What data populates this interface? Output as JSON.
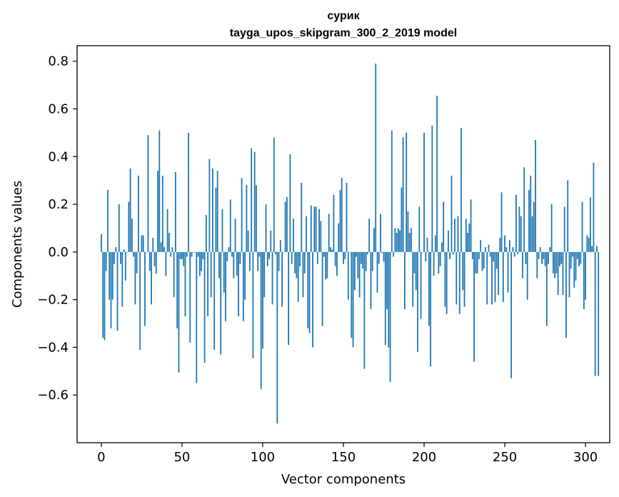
{
  "chart_data": {
    "type": "bar",
    "title": "сурик",
    "subtitle": "tayga_upos_skipgram_300_2_2019 model",
    "xlabel": "Vector components",
    "ylabel": "Components values",
    "xlim": [
      -15,
      315
    ],
    "ylim": [
      -0.8,
      0.865
    ],
    "x_ticks": [
      0,
      50,
      100,
      150,
      200,
      250,
      300
    ],
    "x_tick_labels": [
      "0",
      "50",
      "100",
      "150",
      "200",
      "250",
      "300"
    ],
    "y_ticks": [
      -0.6,
      -0.4,
      -0.2,
      0.0,
      0.2,
      0.4,
      0.6,
      0.8
    ],
    "y_tick_labels": [
      "−0.6",
      "−0.4",
      "−0.2",
      "0.0",
      "0.2",
      "0.4",
      "0.6",
      "0.8"
    ],
    "bar_color": "#1f77b4",
    "values": [
      0.075,
      -0.36,
      -0.37,
      -0.08,
      0.26,
      -0.2,
      -0.32,
      -0.2,
      -0.05,
      0.02,
      -0.33,
      0.2,
      -0.05,
      -0.23,
      0.01,
      -0.12,
      0.0,
      0.21,
      0.35,
      0.14,
      -0.02,
      -0.22,
      -0.09,
      0.32,
      -0.41,
      0.07,
      0.07,
      -0.31,
      0.0,
      0.49,
      -0.08,
      -0.22,
      0.06,
      -0.06,
      -0.09,
      0.34,
      0.51,
      0.04,
      0.32,
      0.02,
      -0.1,
      0.18,
      0.08,
      -0.02,
      0.02,
      -0.19,
      0.335,
      -0.32,
      -0.505,
      -0.03,
      -0.03,
      -0.06,
      -0.27,
      -0.02,
      0.5,
      -0.38,
      -0.02,
      0.0,
      0.0,
      -0.55,
      -0.02,
      -0.1,
      -0.08,
      -0.03,
      -0.465,
      0.155,
      -0.27,
      0.39,
      -0.19,
      0.35,
      -0.41,
      0.27,
      0.34,
      -0.11,
      -0.43,
      0.18,
      -0.17,
      -0.29,
      -0.04,
      0.02,
      0.22,
      -0.02,
      -0.11,
      0.14,
      -0.1,
      -0.27,
      -0.05,
      0.31,
      -0.29,
      -0.2,
      0.28,
      0.09,
      -0.08,
      0.435,
      -0.445,
      0.42,
      0.28,
      -0.08,
      -0.02,
      -0.575,
      -0.405,
      -0.19,
      0.2,
      -0.06,
      -0.03,
      0.09,
      -0.22,
      0.48,
      -0.01,
      -0.72,
      -0.08,
      0.05,
      -0.23,
      0.0,
      0.21,
      0.23,
      -0.39,
      0.41,
      -0.05,
      0.14,
      -0.09,
      -0.11,
      -0.21,
      -0.06,
      0.29,
      -0.19,
      -0.09,
      0.15,
      -0.32,
      -0.34,
      0.195,
      -0.4,
      0.19,
      0.19,
      -0.05,
      0.18,
      0.13,
      -0.31,
      -0.02,
      -0.115,
      -0.11,
      0.16,
      0.02,
      0.01,
      0.24,
      -0.06,
      -0.1,
      0.12,
      0.26,
      0.31,
      -0.05,
      -0.03,
      0.29,
      -0.2,
      0.0,
      -0.36,
      -0.4,
      -0.16,
      -0.02,
      -0.11,
      -0.19,
      -0.05,
      -0.07,
      -0.49,
      -0.08,
      -0.01,
      0.14,
      -0.24,
      -0.08,
      0.1,
      0.79,
      -0.17,
      -0.05,
      0.16,
      -0.005,
      -0.04,
      -0.39,
      -0.24,
      -0.4,
      -0.545,
      0.51,
      -0.02,
      0.1,
      0.08,
      0.1,
      0.09,
      0.27,
      0.48,
      -0.24,
      0.5,
      0.17,
      0.08,
      0.1,
      -0.23,
      -0.09,
      -0.16,
      -0.42,
      0.19,
      -0.28,
      0.0,
      0.5,
      -0.04,
      0.06,
      -0.31,
      -0.48,
      0.53,
      -0.1,
      0.07,
      0.655,
      -0.09,
      -0.06,
      0.04,
      0.21,
      -0.23,
      -0.26,
      0.09,
      -0.03,
      0.32,
      -0.01,
      0.14,
      -0.22,
      0.15,
      -0.26,
      0.52,
      -0.16,
      -0.23,
      0.14,
      0.08,
      0.12,
      0.22,
      -0.03,
      -0.46,
      -0.09,
      -0.09,
      -0.03,
      0.05,
      -0.08,
      -0.07,
      0.02,
      -0.22,
      0.03,
      -0.02,
      -0.22,
      -0.04,
      -0.21,
      -0.07,
      -0.18,
      0.06,
      0.25,
      -0.21,
      0.07,
      0.02,
      -0.17,
      0.05,
      -0.53,
      0.02,
      -0.02,
      0.24,
      -0.01,
      0.19,
      0.15,
      -0.11,
      0.355,
      -0.05,
      -0.2,
      0.26,
      0.32,
      0.15,
      0.21,
      0.47,
      -0.11,
      -0.03,
      0.02,
      -0.05,
      -0.03,
      -0.06,
      -0.31,
      -0.05,
      0.02,
      0.2,
      -0.09,
      -0.11,
      -0.09,
      -0.18,
      -0.06,
      -0.05,
      -0.18,
      0.19,
      -0.36,
      0.3,
      -0.19,
      -0.07,
      -0.02,
      -0.15,
      -0.12,
      -0.03,
      -0.06,
      -0.05,
      0.21,
      -0.24,
      -0.2,
      0.07,
      0.06,
      0.23,
      0.025,
      0.375,
      -0.52,
      0.025,
      -0.52
    ]
  }
}
